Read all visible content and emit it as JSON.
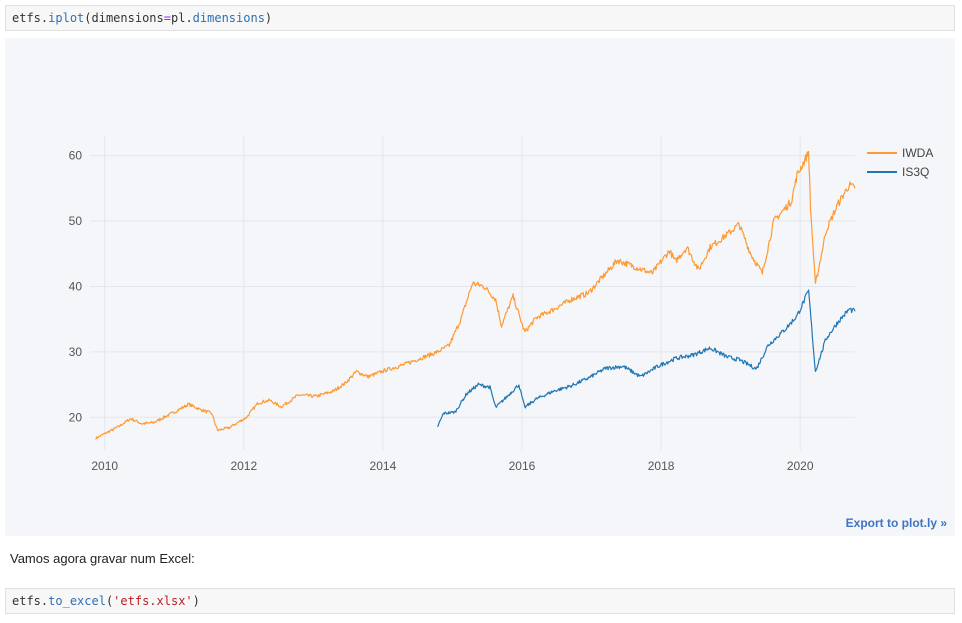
{
  "cells": {
    "first": {
      "prefix": "etfs",
      "dot1": ".",
      "fn": "iplot",
      "open": "(",
      "argname": "dimensions",
      "eq": "=",
      "argval": "pl",
      "dot2": ".",
      "attr": "dimensions",
      "close": ")"
    },
    "markdown": "Vamos agora gravar num Excel:",
    "second": {
      "prefix": "etfs",
      "dot": ".",
      "fn": "to_excel",
      "open": "(",
      "arg": "'etfs.xlsx'",
      "close": ")"
    }
  },
  "export_link": "Export to plot.ly »",
  "chart_data": {
    "type": "line",
    "x_axis": {
      "type": "date",
      "range": [
        "2009-10",
        "2020-10"
      ],
      "ticks": [
        "2010",
        "2012",
        "2014",
        "2016",
        "2018",
        "2020"
      ]
    },
    "y_axis": {
      "range": [
        15,
        63
      ],
      "ticks": [
        20,
        30,
        40,
        50,
        60
      ]
    },
    "grid": true,
    "legend": "top-right",
    "series": [
      {
        "name": "IWDA",
        "color": "#ff9933",
        "points": [
          [
            "2009-11",
            16.8
          ],
          [
            "2010-03",
            18.6
          ],
          [
            "2010-05",
            19.8
          ],
          [
            "2010-07",
            19.0
          ],
          [
            "2010-09",
            19.2
          ],
          [
            "2011-01",
            21.0
          ],
          [
            "2011-03",
            22.0
          ],
          [
            "2011-05",
            21.2
          ],
          [
            "2011-07",
            20.6
          ],
          [
            "2011-08",
            18.0
          ],
          [
            "2011-10",
            18.4
          ],
          [
            "2012-01",
            20.0
          ],
          [
            "2012-03",
            22.2
          ],
          [
            "2012-05",
            22.6
          ],
          [
            "2012-07",
            21.6
          ],
          [
            "2012-10",
            23.4
          ],
          [
            "2013-01",
            23.2
          ],
          [
            "2013-04",
            24.0
          ],
          [
            "2013-06",
            25.2
          ],
          [
            "2013-08",
            27.0
          ],
          [
            "2013-10",
            26.2
          ],
          [
            "2014-01",
            27.2
          ],
          [
            "2014-04",
            28.0
          ],
          [
            "2014-07",
            29.0
          ],
          [
            "2014-10",
            30.0
          ],
          [
            "2014-12",
            31.0
          ],
          [
            "2015-02",
            35.0
          ],
          [
            "2015-04",
            40.5
          ],
          [
            "2015-06",
            40.0
          ],
          [
            "2015-08",
            38.0
          ],
          [
            "2015-09",
            34.0
          ],
          [
            "2015-11",
            38.5
          ],
          [
            "2016-01",
            33.0
          ],
          [
            "2016-03",
            35.2
          ],
          [
            "2016-06",
            36.5
          ],
          [
            "2016-09",
            38.0
          ],
          [
            "2016-12",
            39.0
          ],
          [
            "2017-02",
            41.0
          ],
          [
            "2017-05",
            44.0
          ],
          [
            "2017-08",
            43.0
          ],
          [
            "2017-11",
            42.0
          ],
          [
            "2018-02",
            45.5
          ],
          [
            "2018-03",
            43.8
          ],
          [
            "2018-05",
            46.0
          ],
          [
            "2018-07",
            42.5
          ],
          [
            "2018-09",
            46.0
          ],
          [
            "2018-12",
            48.0
          ],
          [
            "2019-02",
            49.5
          ],
          [
            "2019-04",
            45.0
          ],
          [
            "2019-06",
            42.0
          ],
          [
            "2019-08",
            50.0
          ],
          [
            "2019-11",
            53.0
          ],
          [
            "2019-12",
            57.0
          ],
          [
            "2020-02",
            60.5
          ],
          [
            "2020-02-25",
            52.0
          ],
          [
            "2020-03-20",
            40.2
          ],
          [
            "2020-05",
            48.5
          ],
          [
            "2020-07",
            52.5
          ],
          [
            "2020-09",
            55.5
          ],
          [
            "2020-10",
            55.0
          ]
        ]
      },
      {
        "name": "IS3Q",
        "color": "#1f77b4",
        "points": [
          [
            "2014-10",
            18.6
          ],
          [
            "2014-11",
            20.6
          ],
          [
            "2015-01",
            20.8
          ],
          [
            "2015-03",
            23.6
          ],
          [
            "2015-05",
            25.0
          ],
          [
            "2015-07",
            24.6
          ],
          [
            "2015-08",
            21.5
          ],
          [
            "2015-10",
            23.2
          ],
          [
            "2015-12",
            25.0
          ],
          [
            "2016-01",
            21.5
          ],
          [
            "2016-03",
            22.8
          ],
          [
            "2016-06",
            24.0
          ],
          [
            "2016-09",
            24.8
          ],
          [
            "2016-12",
            26.0
          ],
          [
            "2017-03",
            27.5
          ],
          [
            "2017-06",
            27.8
          ],
          [
            "2017-09",
            26.2
          ],
          [
            "2017-12",
            27.8
          ],
          [
            "2018-03",
            29.0
          ],
          [
            "2018-06",
            29.5
          ],
          [
            "2018-09",
            30.6
          ],
          [
            "2018-12",
            29.2
          ],
          [
            "2019-02",
            28.8
          ],
          [
            "2019-05",
            27.4
          ],
          [
            "2019-07",
            31.0
          ],
          [
            "2019-10",
            33.5
          ],
          [
            "2019-12",
            35.5
          ],
          [
            "2020-02",
            39.3
          ],
          [
            "2020-03-20",
            27.0
          ],
          [
            "2020-05",
            32.0
          ],
          [
            "2020-07",
            34.5
          ],
          [
            "2020-09",
            36.5
          ],
          [
            "2020-10",
            36.2
          ]
        ]
      }
    ]
  }
}
